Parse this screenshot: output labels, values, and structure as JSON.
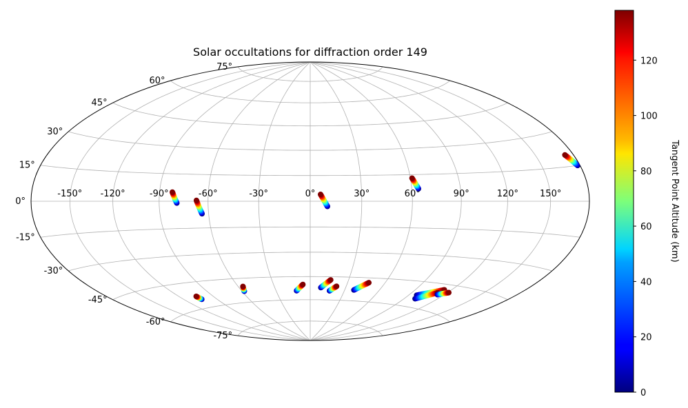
{
  "chart_data": {
    "type": "scatter",
    "projection": "hammer",
    "title": "Solar occultations for diffraction order 149",
    "grid": true,
    "x_ticks": [
      "-150°",
      "-120°",
      "-90°",
      "-60°",
      "-30°",
      "0°",
      "30°",
      "60°",
      "90°",
      "120°",
      "150°"
    ],
    "x_tick_values": [
      -150,
      -120,
      -90,
      -60,
      -30,
      0,
      30,
      60,
      90,
      120,
      150
    ],
    "y_ticks": [
      "-75°",
      "-60°",
      "-45°",
      "-30°",
      "-15°",
      "0°",
      "15°",
      "30°",
      "45°",
      "60°",
      "75°"
    ],
    "y_tick_values": [
      -75,
      -60,
      -45,
      -30,
      -15,
      0,
      15,
      30,
      45,
      60,
      75
    ],
    "colorbar": {
      "label": "Tangent Point Altitude (km)",
      "colormap": "jet",
      "range": [
        0,
        138
      ],
      "ticks": [
        "0",
        "20",
        "40",
        "60",
        "80",
        "100",
        "120"
      ],
      "tick_values": [
        0,
        20,
        40,
        60,
        80,
        100,
        120
      ]
    },
    "occultations": [
      {
        "lon_high": -82,
        "lat_high": 5,
        "lon_low": -79,
        "lat_low": -1
      },
      {
        "lon_high": -67,
        "lat_high": 0.5,
        "lon_low": -64,
        "lat_low": -7
      },
      {
        "lon_high": 6,
        "lat_high": 4,
        "lon_low": 10,
        "lat_low": -3
      },
      {
        "lon_high": 61,
        "lat_high": 13,
        "lon_low": 64,
        "lat_low": 7
      },
      {
        "lon_high": 173,
        "lat_high": 20,
        "lon_low": 178,
        "lat_low": 15
      },
      {
        "lon_high": -105,
        "lat_high": -53,
        "lon_low": -104,
        "lat_low": -55
      },
      {
        "lon_high": -56,
        "lat_high": -50,
        "lon_low": -58,
        "lat_low": -53
      },
      {
        "lon_high": -6,
        "lat_high": -50,
        "lon_low": -12,
        "lat_low": -54
      },
      {
        "lon_high": 16,
        "lat_high": -47,
        "lon_low": 9,
        "lat_low": -52
      },
      {
        "lon_high": 22,
        "lat_high": -51,
        "lon_low": 17,
        "lat_low": -54
      },
      {
        "lon_high": 47,
        "lat_high": -48,
        "lon_low": 38,
        "lat_low": -53
      },
      {
        "lon_high": 114,
        "lat_high": -48,
        "lon_low": 97,
        "lat_low": -53
      },
      {
        "lon_high": 112,
        "lat_high": -50,
        "lon_low": 100,
        "lat_low": -55
      },
      {
        "lon_high": 121,
        "lat_high": -49,
        "lon_low": 114,
        "lat_low": -51
      }
    ],
    "occultation_altitude_range_km": [
      0,
      138
    ]
  }
}
